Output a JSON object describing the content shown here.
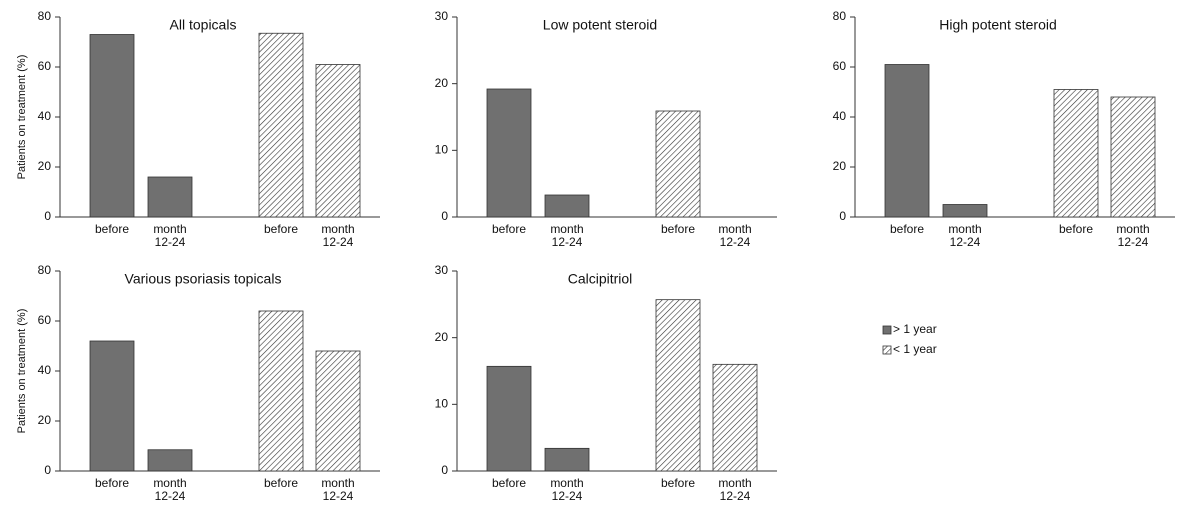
{
  "chart_data": [
    {
      "type": "bar",
      "title": "All topicals",
      "ylabel": "Patients on treatment (%)",
      "categories": [
        "before",
        "month 12-24"
      ],
      "series": [
        {
          "name": "> 1 year",
          "color": "#707070",
          "values": [
            73,
            16
          ]
        },
        {
          "name": "< 1 year",
          "color": "#ffffff",
          "pattern": "hatch",
          "values": [
            73.5,
            61
          ]
        }
      ],
      "ylim": [
        0,
        80
      ],
      "yticks": [
        0,
        20,
        40,
        60,
        80
      ]
    },
    {
      "type": "bar",
      "title": "Low potent steroid",
      "categories": [
        "before",
        "month 12-24"
      ],
      "series": [
        {
          "color": "#707070",
          "values": [
            19.2,
            3.3
          ]
        },
        {
          "color": "#ffffff",
          "pattern": "hatch",
          "values": [
            15.9,
            0
          ]
        }
      ],
      "ylim": [
        0,
        30
      ],
      "yticks": [
        0,
        10,
        20,
        30
      ]
    },
    {
      "type": "bar",
      "title": "High potent steroid",
      "categories": [
        "before",
        "month 12-24"
      ],
      "series": [
        {
          "color": "#707070",
          "values": [
            61,
            5
          ]
        },
        {
          "color": "#ffffff",
          "pattern": "hatch",
          "values": [
            51,
            48
          ]
        }
      ],
      "ylim": [
        0,
        80
      ],
      "yticks": [
        0,
        20,
        40,
        60,
        80
      ]
    },
    {
      "type": "bar",
      "title": "Various psoriasis topicals",
      "ylabel": "Patients on treatment (%)",
      "categories": [
        "before",
        "month 12-24"
      ],
      "series": [
        {
          "color": "#707070",
          "values": [
            52,
            8.5
          ]
        },
        {
          "color": "#ffffff",
          "pattern": "hatch",
          "values": [
            64,
            48
          ]
        }
      ],
      "ylim": [
        0,
        80
      ],
      "yticks": [
        0,
        20,
        40,
        60,
        80
      ]
    },
    {
      "type": "bar",
      "title": "Calcipitriol",
      "categories": [
        "before",
        "month 12-24"
      ],
      "series": [
        {
          "color": "#707070",
          "values": [
            15.7,
            3.4
          ]
        },
        {
          "color": "#ffffff",
          "pattern": "hatch",
          "values": [
            25.7,
            16
          ]
        }
      ],
      "ylim": [
        0,
        30
      ],
      "yticks": [
        0,
        10,
        20,
        30
      ]
    }
  ]
}
